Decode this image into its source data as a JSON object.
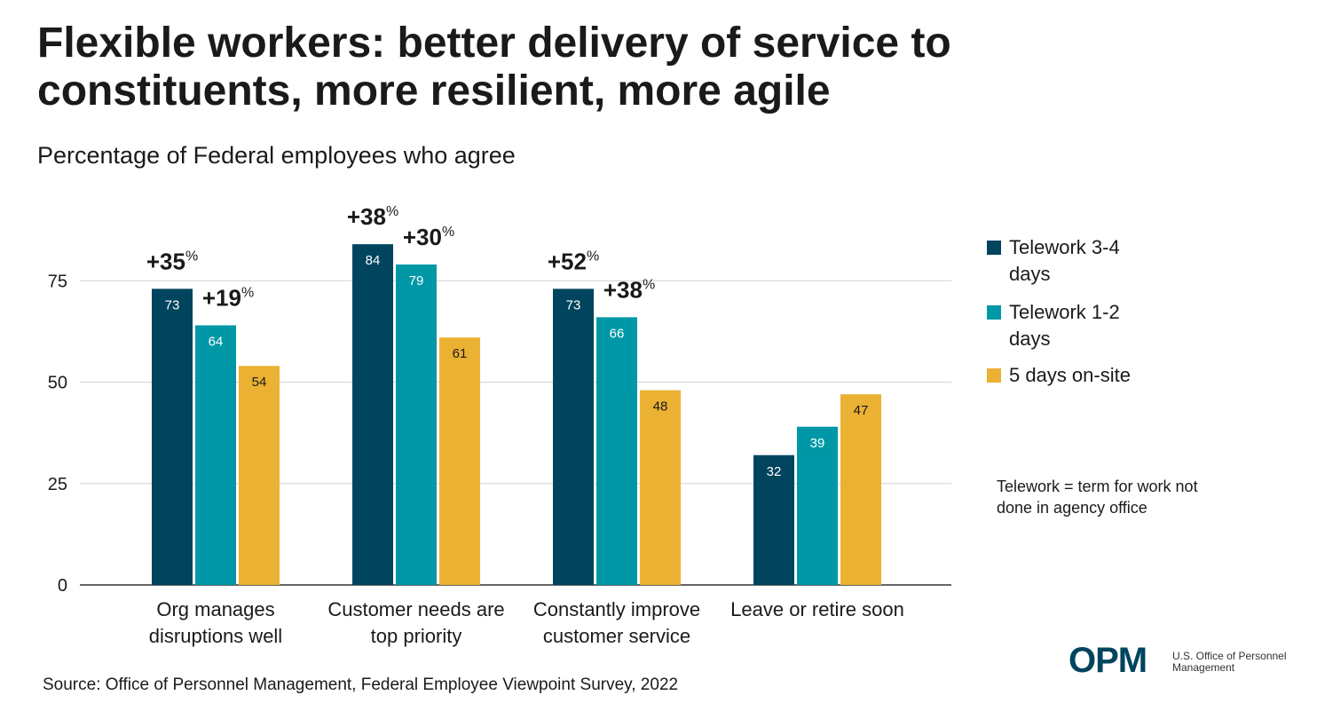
{
  "chart_data": {
    "type": "bar",
    "title": "Flexible workers: better delivery of service to constituents, more resilient, more agile",
    "subtitle": "Percentage of Federal employees who agree",
    "categories": [
      "Org manages disruptions well",
      "Customer needs are top priority",
      "Constantly improve customer service",
      "Leave or retire soon"
    ],
    "series": [
      {
        "name": "Telework 3-4 days",
        "color": "#00445e",
        "values": [
          73,
          84,
          73,
          32
        ],
        "annotations": [
          "+35",
          "+38",
          "+52",
          null
        ]
      },
      {
        "name": "Telework 1-2 days",
        "color": "#0098a6",
        "values": [
          64,
          79,
          66,
          39
        ],
        "annotations": [
          "+19",
          "+30",
          "+38",
          null
        ]
      },
      {
        "name": "5 days on-site",
        "color": "#ebb133",
        "values": [
          54,
          61,
          48,
          47
        ]
      }
    ],
    "annotation_unit": "%",
    "ylim": [
      0,
      100
    ],
    "yticks": [
      0,
      25,
      50,
      75
    ],
    "grid": true,
    "legend": "right",
    "note": "Telework = term for work not done in agency office",
    "source": "Source: Office of Personnel Management, Federal Employee Viewpoint Survey, 2022",
    "logo": {
      "mark": "OPM",
      "text": "U.S. Office of Personnel Management"
    }
  }
}
